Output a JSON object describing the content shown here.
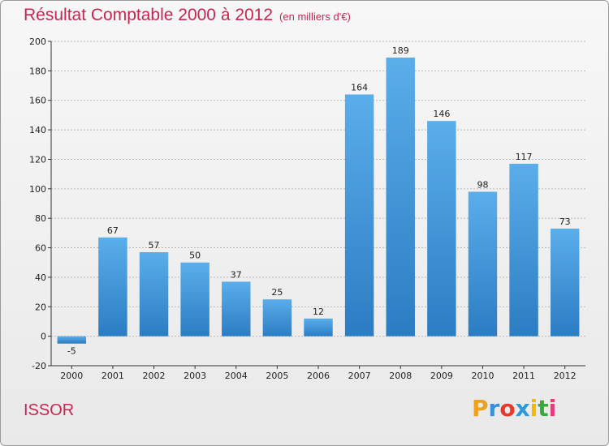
{
  "header": {
    "title": "Résultat Comptable 2000 à 2012",
    "subtitle": "(en milliers d'€)"
  },
  "footer": {
    "commune": "ISSOR",
    "logo": {
      "letters": [
        "P",
        "r",
        "o",
        "x",
        "i",
        "t",
        "i"
      ],
      "colors": [
        "#f0a020",
        "#3b8fd6",
        "#e83a2a",
        "#2e9ad8",
        "#f5b800",
        "#3aa83a",
        "#e83a78"
      ]
    }
  },
  "colors": {
    "bar_top": "#5aaeea",
    "bar_bottom": "#2c7cc3",
    "title": "#c8264f",
    "grid": "#b9b9b9"
  },
  "chart_data": {
    "type": "bar",
    "title": "Résultat Comptable 2000 à 2012",
    "subtitle": "(en milliers d'€)",
    "categories": [
      "2000",
      "2001",
      "2002",
      "2003",
      "2004",
      "2005",
      "2006",
      "2007",
      "2008",
      "2009",
      "2010",
      "2011",
      "2012"
    ],
    "values": [
      -5,
      67,
      57,
      50,
      37,
      25,
      12,
      164,
      189,
      146,
      98,
      117,
      73
    ],
    "ylim": [
      -20,
      200
    ],
    "yticks": [
      -20,
      0,
      20,
      40,
      60,
      80,
      100,
      120,
      140,
      160,
      180,
      200
    ],
    "grid": true,
    "xlabel": "",
    "ylabel": ""
  }
}
